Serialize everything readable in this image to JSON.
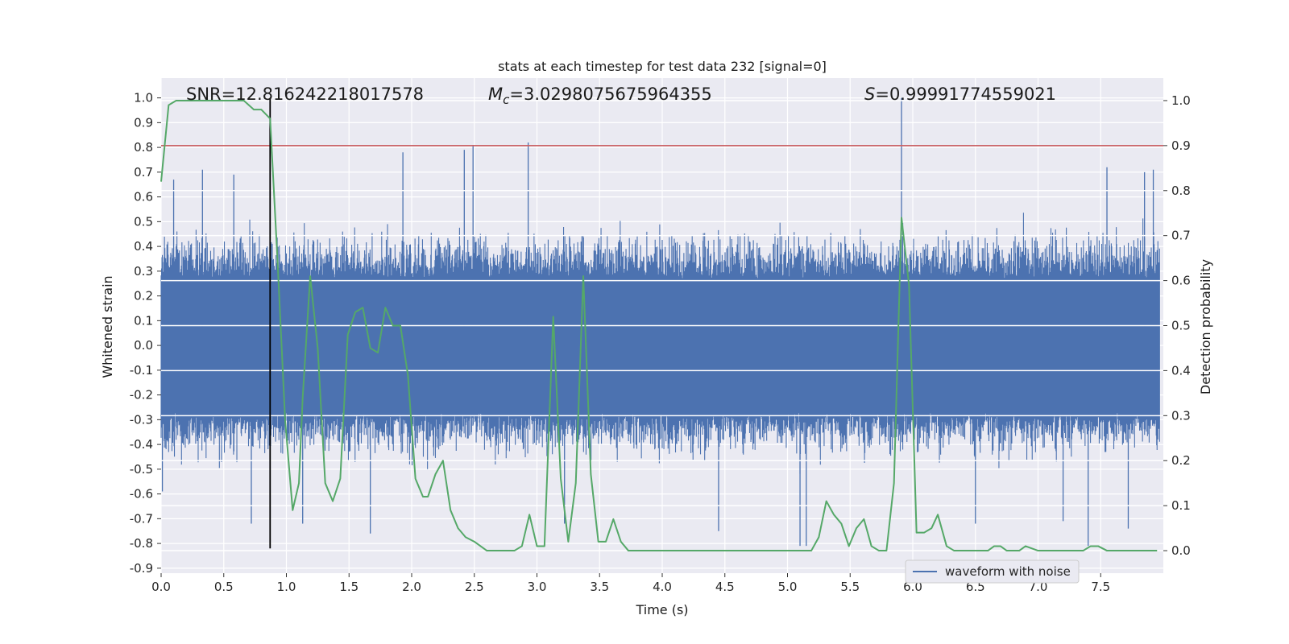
{
  "chart_data": {
    "type": "line",
    "title": "stats at each timestep for test data 232 [signal=0]",
    "xlabel": "Time (s)",
    "ylabel": "Whitened strain",
    "ylabel_right": "Detection probability",
    "xlim": [
      0.0,
      8.0
    ],
    "ylim": [
      -0.92,
      1.08
    ],
    "ylim_right": [
      -0.05,
      1.05
    ],
    "x_ticks": [
      "0.0",
      "0.5",
      "1.0",
      "1.5",
      "2.0",
      "2.5",
      "3.0",
      "3.5",
      "4.0",
      "4.5",
      "5.0",
      "5.5",
      "6.0",
      "6.5",
      "7.0",
      "7.5"
    ],
    "y_ticks": [
      "1.0",
      "0.9",
      "0.8",
      "0.7",
      "0.6",
      "0.5",
      "0.4",
      "0.3",
      "0.2",
      "0.1",
      "0.0",
      "-0.1",
      "-0.2",
      "-0.3",
      "-0.4",
      "-0.5",
      "-0.6",
      "-0.7",
      "-0.8",
      "-0.9"
    ],
    "y_ticks_right": [
      "1.0",
      "0.9",
      "0.8",
      "0.7",
      "0.6",
      "0.5",
      "0.4",
      "0.3",
      "0.2",
      "0.1",
      "0.0"
    ],
    "annotations": {
      "snr": "SNR=12.816242218017578",
      "mc_symbol": "M",
      "mc_sub": "c",
      "mc_value": "=3.0298075675964355",
      "s_symbol": "S",
      "s_value": "=0.99991774559021"
    },
    "threshold_right": 0.9,
    "vertical_marker": {
      "x": 0.87,
      "y_range": [
        -0.82,
        1.0
      ]
    },
    "waveform_spikes": [
      {
        "x": 0.01,
        "y": -0.59
      },
      {
        "x": 0.1,
        "y": 0.67
      },
      {
        "x": 0.33,
        "y": 0.71
      },
      {
        "x": 0.58,
        "y": 0.69
      },
      {
        "x": 0.72,
        "y": -0.72
      },
      {
        "x": 1.13,
        "y": -0.72
      },
      {
        "x": 1.67,
        "y": -0.76
      },
      {
        "x": 1.93,
        "y": 0.78
      },
      {
        "x": 2.42,
        "y": 0.79
      },
      {
        "x": 2.49,
        "y": 0.81
      },
      {
        "x": 2.93,
        "y": 0.82
      },
      {
        "x": 3.22,
        "y": -0.72
      },
      {
        "x": 4.45,
        "y": -0.75
      },
      {
        "x": 5.1,
        "y": -0.81
      },
      {
        "x": 5.15,
        "y": -0.81
      },
      {
        "x": 5.91,
        "y": 1.0
      },
      {
        "x": 6.5,
        "y": -0.72
      },
      {
        "x": 7.2,
        "y": -0.71
      },
      {
        "x": 7.4,
        "y": -0.81
      },
      {
        "x": 7.55,
        "y": 0.72
      },
      {
        "x": 7.72,
        "y": -0.74
      },
      {
        "x": 7.85,
        "y": 0.7
      },
      {
        "x": 7.92,
        "y": 0.71
      }
    ],
    "series": [
      {
        "name": "waveform with noise",
        "color": "#4c72b0",
        "envelope_upper": 0.45,
        "envelope_lower": -0.45,
        "core_upper": 0.27,
        "core_lower": -0.27
      },
      {
        "color": "#55a868",
        "axis": "right",
        "x": [
          0.0,
          0.06,
          0.12,
          0.2,
          0.3,
          0.4,
          0.5,
          0.6,
          0.66,
          0.74,
          0.8,
          0.87,
          0.93,
          0.99,
          1.05,
          1.1,
          1.13,
          1.19,
          1.25,
          1.31,
          1.37,
          1.43,
          1.49,
          1.55,
          1.61,
          1.67,
          1.73,
          1.79,
          1.85,
          1.91,
          1.97,
          2.03,
          2.09,
          2.13,
          2.19,
          2.25,
          2.31,
          2.37,
          2.43,
          2.5,
          2.6,
          2.7,
          2.76,
          2.82,
          2.88,
          2.94,
          3.0,
          3.06,
          3.13,
          3.19,
          3.25,
          3.31,
          3.37,
          3.43,
          3.49,
          3.55,
          3.61,
          3.67,
          3.73,
          3.8,
          3.9,
          4.0,
          4.1,
          4.2,
          4.3,
          4.4,
          4.5,
          4.6,
          4.7,
          4.8,
          4.9,
          5.0,
          5.1,
          5.15,
          5.19,
          5.25,
          5.31,
          5.37,
          5.43,
          5.49,
          5.55,
          5.61,
          5.67,
          5.73,
          5.79,
          5.85,
          5.91,
          5.97,
          6.03,
          6.09,
          6.15,
          6.2,
          6.27,
          6.33,
          6.39,
          6.45,
          6.55,
          6.6,
          6.65,
          6.7,
          6.75,
          6.85,
          6.9,
          7.0,
          7.1,
          7.2,
          7.3,
          7.36,
          7.42,
          7.48,
          7.55,
          7.65,
          7.75,
          7.85,
          7.95
        ],
        "values": [
          0.82,
          0.99,
          1.0,
          1.0,
          1.0,
          1.0,
          1.0,
          1.0,
          1.0,
          0.98,
          0.98,
          0.96,
          0.64,
          0.29,
          0.09,
          0.15,
          0.34,
          0.61,
          0.45,
          0.15,
          0.11,
          0.16,
          0.48,
          0.53,
          0.54,
          0.45,
          0.44,
          0.54,
          0.5,
          0.5,
          0.39,
          0.16,
          0.12,
          0.12,
          0.17,
          0.2,
          0.09,
          0.05,
          0.03,
          0.02,
          0.0,
          0.0,
          0.0,
          0.0,
          0.01,
          0.08,
          0.01,
          0.01,
          0.52,
          0.16,
          0.02,
          0.15,
          0.61,
          0.17,
          0.02,
          0.02,
          0.07,
          0.02,
          0.0,
          0.0,
          0.0,
          0.0,
          0.0,
          0.0,
          0.0,
          0.0,
          0.0,
          0.0,
          0.0,
          0.0,
          0.0,
          0.0,
          0.0,
          0.0,
          0.0,
          0.03,
          0.11,
          0.08,
          0.06,
          0.01,
          0.05,
          0.07,
          0.01,
          0.0,
          0.0,
          0.15,
          0.74,
          0.59,
          0.04,
          0.04,
          0.05,
          0.08,
          0.01,
          0.0,
          0.0,
          0.0,
          0.0,
          0.0,
          0.01,
          0.01,
          0.0,
          0.0,
          0.01,
          0.0,
          0.0,
          0.0,
          0.0,
          0.0,
          0.01,
          0.01,
          0.0,
          0.0,
          0.0,
          0.0,
          0.0
        ]
      }
    ],
    "legend": {
      "placement": "lower-center-right",
      "entries": [
        "waveform with noise"
      ]
    },
    "grid": true,
    "colors": {
      "axes_bg": "#eaeaf2",
      "grid": "#ffffff",
      "threshold": "#c44e52",
      "marker": "#000000"
    }
  }
}
